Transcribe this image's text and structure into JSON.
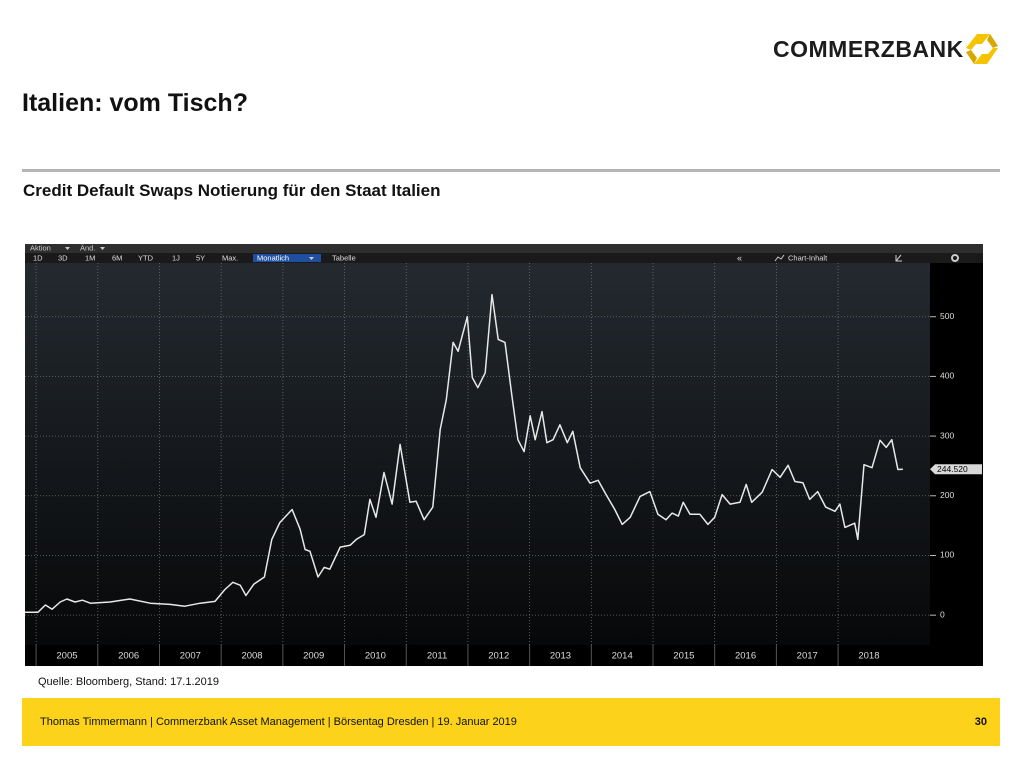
{
  "header": {
    "logo": "COMMERZBANK",
    "title": "Italien: vom Tisch?",
    "subtitle": "Credit Default Swaps Notierung für den Staat Italien"
  },
  "toolbar": {
    "menus": [
      "Aktion",
      "Änd."
    ],
    "periods": [
      "1D",
      "3D",
      "1M",
      "6M",
      "YTD",
      "1J",
      "5Y",
      "Max."
    ],
    "frequency": "Monatlich",
    "table": "Tabelle",
    "collapse": "«",
    "content": "Chart-Inhalt"
  },
  "chart_data": {
    "type": "line",
    "x": [
      2004.82,
      2005.03,
      2005.15,
      2005.26,
      2005.39,
      2005.5,
      2005.63,
      2005.75,
      2005.88,
      2006.2,
      2006.52,
      2006.85,
      2007.17,
      2007.41,
      2007.66,
      2007.9,
      2008.06,
      2008.19,
      2008.31,
      2008.4,
      2008.53,
      2008.7,
      2008.82,
      2008.95,
      2009.15,
      2009.28,
      2009.36,
      2009.44,
      2009.57,
      2009.67,
      2009.76,
      2009.93,
      2010.09,
      2010.19,
      2010.32,
      2010.41,
      2010.51,
      2010.64,
      2010.77,
      2010.9,
      2011.06,
      2011.16,
      2011.29,
      2011.43,
      2011.55,
      2011.65,
      2011.76,
      2011.84,
      2011.99,
      2012.07,
      2012.16,
      2012.28,
      2012.39,
      2012.49,
      2012.6,
      2012.71,
      2012.81,
      2012.91,
      2013.01,
      2013.09,
      2013.2,
      2013.28,
      2013.38,
      2013.49,
      2013.61,
      2013.7,
      2013.82,
      2013.98,
      2014.11,
      2014.24,
      2014.38,
      2014.5,
      2014.63,
      2014.79,
      2014.95,
      2015.08,
      2015.21,
      2015.31,
      2015.41,
      2015.49,
      2015.6,
      2015.76,
      2015.89,
      2016.0,
      2016.12,
      2016.25,
      2016.41,
      2016.51,
      2016.6,
      2016.77,
      2016.93,
      2017.06,
      2017.19,
      2017.3,
      2017.43,
      2017.54,
      2017.67,
      2017.8,
      2017.95,
      2018.03,
      2018.11,
      2018.27,
      2018.32,
      2018.42,
      2018.55,
      2018.68,
      2018.78,
      2018.87,
      2018.97,
      2019.05
    ],
    "series": [
      {
        "color": "#e8e8e8",
        "values": [
          5,
          5,
          17,
          10,
          22,
          27,
          22,
          25,
          20,
          22,
          27,
          20,
          18,
          15,
          20,
          23,
          43,
          55,
          50,
          33,
          52,
          64,
          127,
          155,
          177,
          144,
          110,
          107,
          64,
          80,
          77,
          114,
          117,
          127,
          135,
          194,
          164,
          239,
          186,
          286,
          189,
          191,
          160,
          181,
          311,
          361,
          457,
          442,
          500,
          398,
          381,
          406,
          537,
          462,
          457,
          370,
          294,
          274,
          334,
          294,
          341,
          289,
          294,
          319,
          289,
          308,
          247,
          221,
          226,
          202,
          177,
          152,
          164,
          199,
          207,
          169,
          160,
          171,
          166,
          189,
          169,
          169,
          152,
          164,
          202,
          186,
          189,
          219,
          189,
          206,
          244,
          231,
          251,
          224,
          222,
          194,
          207,
          181,
          174,
          186,
          147,
          154,
          127,
          252,
          247,
          293,
          281,
          294,
          244,
          244.52
        ]
      }
    ],
    "xlim": [
      2004.82,
      2019.49
    ],
    "ylim": [
      -50,
      590
    ],
    "xticks": [
      2005,
      2006,
      2007,
      2008,
      2009,
      2010,
      2011,
      2012,
      2013,
      2014,
      2015,
      2016,
      2017,
      2018
    ],
    "yticks": [
      0,
      100,
      200,
      300,
      400,
      500
    ],
    "grid": true,
    "last_value": {
      "value": 244.52,
      "label": "244.520"
    }
  },
  "source": "Quelle: Bloomberg, Stand: 17.1.2019",
  "footer": {
    "text": "Thomas Timmermann | Commerzbank Asset Management | Börsentag Dresden | 19. Januar 2019",
    "page": "30"
  }
}
